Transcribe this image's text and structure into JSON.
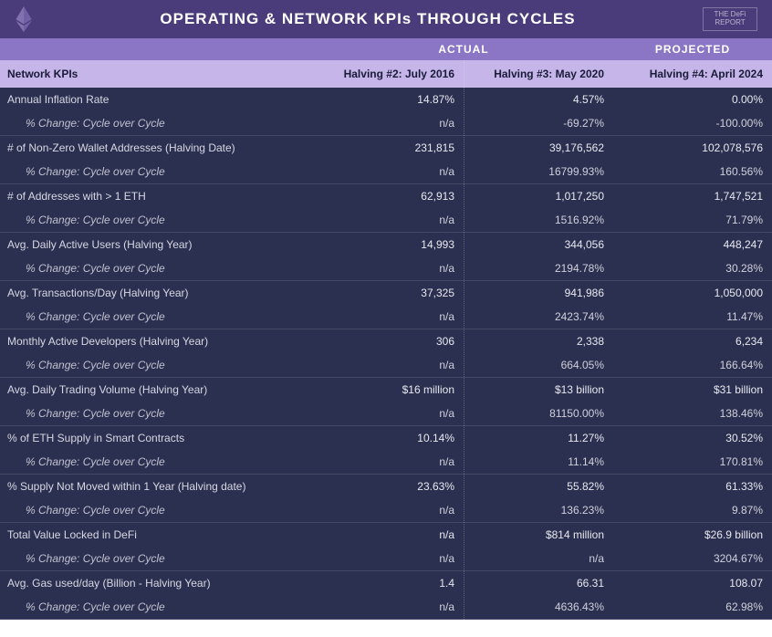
{
  "title": "OPERATING & NETWORK KPIs THROUGH CYCLES",
  "report_logo": "THE DeFi REPORT",
  "headers": {
    "actual": "ACTUAL",
    "projected": "PROJECTED",
    "section": "Network KPIs",
    "col1": "Halving #2: July 2016",
    "col2": "Halving #3: May 2020",
    "col3": "Halving #4: April 2024"
  },
  "change_label": "% Change: Cycle over Cycle",
  "metrics": [
    {
      "label": "Annual Inflation Rate",
      "v": [
        "14.87%",
        "4.57%",
        "0.00%"
      ],
      "c": [
        "n/a",
        "-69.27%",
        "-100.00%"
      ]
    },
    {
      "label": "# of Non-Zero Wallet Addresses (Halving Date)",
      "v": [
        "231,815",
        "39,176,562",
        "102,078,576"
      ],
      "c": [
        "n/a",
        "16799.93%",
        "160.56%"
      ]
    },
    {
      "label": "# of Addresses with > 1  ETH",
      "v": [
        "62,913",
        "1,017,250",
        "1,747,521"
      ],
      "c": [
        "n/a",
        "1516.92%",
        "71.79%"
      ]
    },
    {
      "label": "Avg. Daily Active Users (Halving Year)",
      "v": [
        "14,993",
        "344,056",
        "448,247"
      ],
      "c": [
        "n/a",
        "2194.78%",
        "30.28%"
      ]
    },
    {
      "label": "Avg. Transactions/Day (Halving Year)",
      "v": [
        "37,325",
        "941,986",
        "1,050,000"
      ],
      "c": [
        "n/a",
        "2423.74%",
        "11.47%"
      ]
    },
    {
      "label": "Monthly Active Developers (Halving Year)",
      "v": [
        "306",
        "2,338",
        "6,234"
      ],
      "c": [
        "n/a",
        "664.05%",
        "166.64%"
      ]
    },
    {
      "label": "Avg. Daily Trading Volume (Halving Year)",
      "v": [
        "$16 million",
        "$13 billion",
        "$31 billion"
      ],
      "c": [
        "n/a",
        "81150.00%",
        "138.46%"
      ]
    },
    {
      "label": "% of ETH Supply in Smart Contracts",
      "v": [
        "10.14%",
        "11.27%",
        "30.52%"
      ],
      "c": [
        "n/a",
        "11.14%",
        "170.81%"
      ]
    },
    {
      "label": "% Supply Not Moved within 1 Year (Halving date)",
      "v": [
        "23.63%",
        "55.82%",
        "61.33%"
      ],
      "c": [
        "n/a",
        "136.23%",
        "9.87%"
      ]
    },
    {
      "label": "Total Value Locked in DeFi",
      "v": [
        "n/a",
        "$814 million",
        "$26.9 billion"
      ],
      "c": [
        "n/a",
        "n/a",
        "3204.67%"
      ]
    },
    {
      "label": "Avg. Gas used/day (Billion - Halving Year)",
      "v": [
        "1.4",
        "66.31",
        "108.07"
      ],
      "c": [
        "n/a",
        "4636.43%",
        "62.98%"
      ]
    }
  ],
  "colors": {
    "header_bg": "#4a3b7a",
    "thead1_bg": "#8a76c5",
    "thead2_bg": "#c5b5e8",
    "body_bg": "#2c3050"
  }
}
